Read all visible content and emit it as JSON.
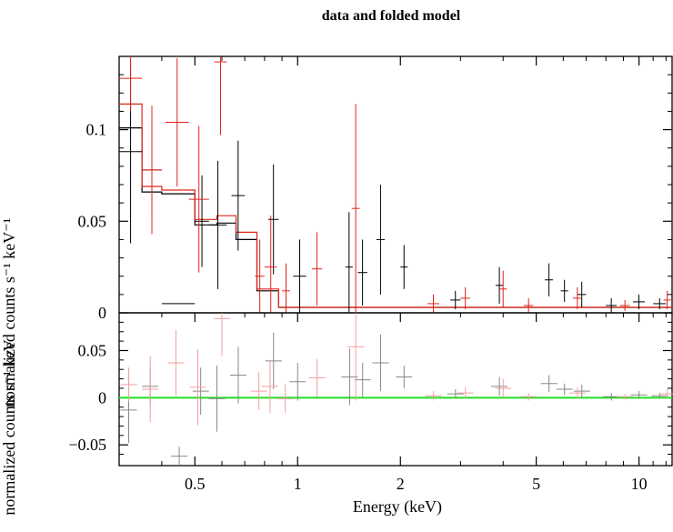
{
  "chart_data": [
    {
      "type": "scatter",
      "title": "data and folded model",
      "xlabel": "Energy (keV)",
      "ylabel": "normalized counts s⁻¹ keV⁻¹",
      "xscale": "log",
      "xlim": [
        0.3,
        12.5
      ],
      "ylim": [
        0,
        0.14
      ],
      "x_tick_labels": [
        "0.5",
        "1",
        "2",
        "5",
        "10"
      ],
      "x_ticks": [
        0.5,
        1,
        2,
        5,
        10
      ],
      "y_tick_labels": [
        "0",
        "0.05",
        "0.1"
      ],
      "y_ticks": [
        0,
        0.05,
        0.1
      ],
      "series": [
        {
          "color": "#000000",
          "points": [
            {
              "x0": 0.3,
              "x1": 0.35,
              "y": 0.088,
              "yerr": 0.05
            },
            {
              "x0": 0.35,
              "x1": 0.4,
              "y": 0.078,
              "yerr": 0.025
            },
            {
              "x0": 0.4,
              "x1": 0.5,
              "y": 0.005,
              "yerr": 0.0
            },
            {
              "x0": 0.5,
              "x1": 0.55,
              "y": 0.05,
              "yerr": 0.025
            },
            {
              "x0": 0.55,
              "x1": 0.62,
              "y": 0.048,
              "yerr": 0.035
            },
            {
              "x0": 0.64,
              "x1": 0.7,
              "y": 0.064,
              "yerr": 0.03
            },
            {
              "x0": 0.82,
              "x1": 0.88,
              "y": 0.051,
              "yerr": 0.03
            },
            {
              "x0": 0.97,
              "x1": 1.06,
              "y": 0.02,
              "yerr": 0.02
            },
            {
              "x0": 1.38,
              "x1": 1.45,
              "y": 0.025,
              "yerr": 0.03
            },
            {
              "x0": 1.5,
              "x1": 1.6,
              "y": 0.022,
              "yerr": 0.018
            },
            {
              "x0": 1.7,
              "x1": 1.8,
              "y": 0.04,
              "yerr": 0.03
            },
            {
              "x0": 2.0,
              "x1": 2.1,
              "y": 0.025,
              "yerr": 0.012
            },
            {
              "x0": 2.8,
              "x1": 3.0,
              "y": 0.007,
              "yerr": 0.005
            },
            {
              "x0": 3.8,
              "x1": 4.0,
              "y": 0.015,
              "yerr": 0.01
            },
            {
              "x0": 5.3,
              "x1": 5.6,
              "y": 0.018,
              "yerr": 0.009
            },
            {
              "x0": 5.9,
              "x1": 6.2,
              "y": 0.012,
              "yerr": 0.006
            },
            {
              "x0": 6.6,
              "x1": 7.0,
              "y": 0.01,
              "yerr": 0.007
            },
            {
              "x0": 8.0,
              "x1": 8.6,
              "y": 0.004,
              "yerr": 0.004
            },
            {
              "x0": 9.6,
              "x1": 10.4,
              "y": 0.006,
              "yerr": 0.004
            },
            {
              "x0": 11.0,
              "x1": 12.0,
              "y": 0.005,
              "yerr": 0.003
            }
          ],
          "model": [
            {
              "x0": 0.3,
              "x1": 0.35,
              "y": 0.101
            },
            {
              "x0": 0.35,
              "x1": 0.4,
              "y": 0.066
            },
            {
              "x0": 0.4,
              "x1": 0.5,
              "y": 0.065
            },
            {
              "x0": 0.5,
              "x1": 0.58,
              "y": 0.048
            },
            {
              "x0": 0.58,
              "x1": 0.66,
              "y": 0.049
            },
            {
              "x0": 0.66,
              "x1": 0.76,
              "y": 0.04
            },
            {
              "x0": 0.76,
              "x1": 0.88,
              "y": 0.012
            },
            {
              "x0": 0.88,
              "x1": 12.5,
              "y": 0.003
            }
          ]
        },
        {
          "color": "#e0241c",
          "points": [
            {
              "x0": 0.3,
              "x1": 0.35,
              "y": 0.128,
              "yerr": 0.018
            },
            {
              "x0": 0.35,
              "x1": 0.4,
              "y": 0.078,
              "yerr": 0.035
            },
            {
              "x0": 0.41,
              "x1": 0.48,
              "y": 0.104,
              "yerr": 0.035
            },
            {
              "x0": 0.48,
              "x1": 0.55,
              "y": 0.062,
              "yerr": 0.04
            },
            {
              "x0": 0.57,
              "x1": 0.62,
              "y": 0.137,
              "yerr": 0.04
            },
            {
              "x0": 0.75,
              "x1": 0.8,
              "y": 0.02,
              "yerr": 0.02
            },
            {
              "x0": 0.8,
              "x1": 0.87,
              "y": 0.025,
              "yerr": 0.028
            },
            {
              "x0": 0.9,
              "x1": 0.95,
              "y": 0.012,
              "yerr": 0.015
            },
            {
              "x0": 1.1,
              "x1": 1.18,
              "y": 0.024,
              "yerr": 0.02
            },
            {
              "x0": 1.44,
              "x1": 1.52,
              "y": 0.057,
              "yerr": 0.057
            },
            {
              "x0": 2.4,
              "x1": 2.6,
              "y": 0.005,
              "yerr": 0.005
            },
            {
              "x0": 3.0,
              "x1": 3.2,
              "y": 0.008,
              "yerr": 0.006
            },
            {
              "x0": 3.9,
              "x1": 4.1,
              "y": 0.013,
              "yerr": 0.01
            },
            {
              "x0": 4.6,
              "x1": 4.9,
              "y": 0.004,
              "yerr": 0.004
            },
            {
              "x0": 6.4,
              "x1": 6.8,
              "y": 0.008,
              "yerr": 0.006
            },
            {
              "x0": 8.8,
              "x1": 9.4,
              "y": 0.004,
              "yerr": 0.003
            },
            {
              "x0": 11.8,
              "x1": 12.4,
              "y": 0.007,
              "yerr": 0.005
            }
          ],
          "model": [
            {
              "x0": 0.3,
              "x1": 0.35,
              "y": 0.114
            },
            {
              "x0": 0.35,
              "x1": 0.4,
              "y": 0.069
            },
            {
              "x0": 0.4,
              "x1": 0.5,
              "y": 0.067
            },
            {
              "x0": 0.5,
              "x1": 0.58,
              "y": 0.051
            },
            {
              "x0": 0.58,
              "x1": 0.66,
              "y": 0.053
            },
            {
              "x0": 0.66,
              "x1": 0.76,
              "y": 0.044
            },
            {
              "x0": 0.76,
              "x1": 0.88,
              "y": 0.013
            },
            {
              "x0": 0.88,
              "x1": 12.5,
              "y": 0.003
            }
          ]
        }
      ]
    },
    {
      "type": "scatter",
      "xlabel": "Energy (keV)",
      "ylabel": "normalized counts s⁻¹ keV",
      "xscale": "log",
      "xlim": [
        0.3,
        12.5
      ],
      "ylim": [
        -0.072,
        0.09
      ],
      "y_tick_labels": [
        "−0.05",
        "0",
        "0.05"
      ],
      "y_ticks": [
        -0.05,
        0,
        0.05
      ],
      "zero_line_color": "#22dd22",
      "series": [
        {
          "color": "#888888",
          "points": [
            {
              "x": 0.32,
              "y": -0.013,
              "yerr": 0.035
            },
            {
              "x": 0.37,
              "y": 0.012,
              "yerr": 0.02
            },
            {
              "x": 0.45,
              "y": -0.062,
              "yerr": 0.01
            },
            {
              "x": 0.52,
              "y": 0.007,
              "yerr": 0.025
            },
            {
              "x": 0.58,
              "y": -0.001,
              "yerr": 0.035
            },
            {
              "x": 0.67,
              "y": 0.024,
              "yerr": 0.03
            },
            {
              "x": 0.85,
              "y": 0.039,
              "yerr": 0.03
            },
            {
              "x": 1.0,
              "y": 0.017,
              "yerr": 0.02
            },
            {
              "x": 1.42,
              "y": 0.022,
              "yerr": 0.03
            },
            {
              "x": 1.55,
              "y": 0.019,
              "yerr": 0.018
            },
            {
              "x": 1.75,
              "y": 0.037,
              "yerr": 0.03
            },
            {
              "x": 2.05,
              "y": 0.022,
              "yerr": 0.012
            },
            {
              "x": 2.9,
              "y": 0.004,
              "yerr": 0.005
            },
            {
              "x": 3.9,
              "y": 0.012,
              "yerr": 0.01
            },
            {
              "x": 5.45,
              "y": 0.015,
              "yerr": 0.009
            },
            {
              "x": 6.05,
              "y": 0.009,
              "yerr": 0.006
            },
            {
              "x": 6.8,
              "y": 0.007,
              "yerr": 0.007
            },
            {
              "x": 8.3,
              "y": 0.001,
              "yerr": 0.004
            },
            {
              "x": 10.0,
              "y": 0.003,
              "yerr": 0.004
            },
            {
              "x": 11.5,
              "y": 0.002,
              "yerr": 0.003
            }
          ]
        },
        {
          "color": "#f0a0a0",
          "points": [
            {
              "x": 0.32,
              "y": 0.014,
              "yerr": 0.018
            },
            {
              "x": 0.37,
              "y": 0.009,
              "yerr": 0.035
            },
            {
              "x": 0.44,
              "y": 0.037,
              "yerr": 0.035
            },
            {
              "x": 0.51,
              "y": 0.011,
              "yerr": 0.04
            },
            {
              "x": 0.6,
              "y": 0.084,
              "yerr": 0.04
            },
            {
              "x": 0.77,
              "y": 0.007,
              "yerr": 0.02
            },
            {
              "x": 0.83,
              "y": 0.012,
              "yerr": 0.028
            },
            {
              "x": 0.92,
              "y": -0.001,
              "yerr": 0.015
            },
            {
              "x": 1.14,
              "y": 0.021,
              "yerr": 0.02
            },
            {
              "x": 1.48,
              "y": 0.054,
              "yerr": 0.057
            },
            {
              "x": 2.5,
              "y": 0.002,
              "yerr": 0.005
            },
            {
              "x": 3.1,
              "y": 0.005,
              "yerr": 0.006
            },
            {
              "x": 4.0,
              "y": 0.01,
              "yerr": 0.01
            },
            {
              "x": 4.75,
              "y": 0.001,
              "yerr": 0.004
            },
            {
              "x": 6.6,
              "y": 0.005,
              "yerr": 0.006
            },
            {
              "x": 9.1,
              "y": 0.001,
              "yerr": 0.003
            },
            {
              "x": 12.1,
              "y": 0.004,
              "yerr": 0.005
            }
          ]
        }
      ]
    }
  ]
}
